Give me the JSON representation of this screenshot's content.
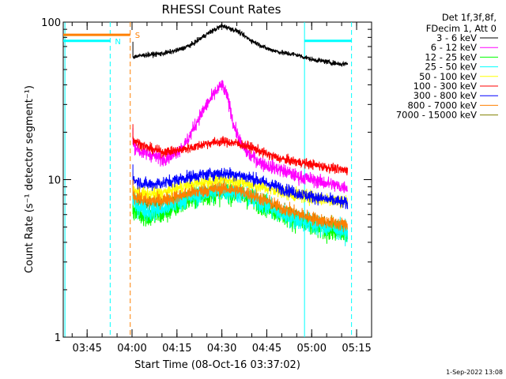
{
  "chart_data": {
    "type": "line",
    "title": "RHESSI Count Rates",
    "xlabel": "Start Time (08-Oct-16 03:37:02)",
    "ylabel": "Count Rate (s⁻¹ detector segment⁻¹)",
    "y_scale": "log",
    "ylim": [
      1,
      100
    ],
    "y_ticks": [
      {
        "value": 1,
        "label": "1"
      },
      {
        "value": 10,
        "label": "10"
      },
      {
        "value": 100,
        "label": "100"
      }
    ],
    "x_ticks": [
      {
        "value": 225,
        "label": "03:45"
      },
      {
        "value": 240,
        "label": "04:00"
      },
      {
        "value": 255,
        "label": "04:15"
      },
      {
        "value": 270,
        "label": "04:30"
      },
      {
        "value": 285,
        "label": "04:45"
      },
      {
        "value": 300,
        "label": "05:00"
      },
      {
        "value": 315,
        "label": "05:15"
      }
    ],
    "xlim_minutes_of_day": [
      217.03,
      320
    ],
    "legend_header": [
      "Det 1f,3f,8f,",
      "FDecim 1, Att 0"
    ],
    "legend_position": "top-right",
    "series": [
      {
        "name": "3 - 6 keV",
        "color": "#000000",
        "x": [
          240,
          245,
          250,
          255,
          260,
          265,
          270,
          275,
          280,
          285,
          290,
          295,
          300,
          305,
          310,
          312
        ],
        "values": [
          60,
          62,
          63,
          66,
          72,
          84,
          95,
          88,
          76,
          68,
          64,
          62,
          58,
          56,
          54,
          55
        ]
      },
      {
        "name": "6 - 12 keV",
        "color": "#ff00ff",
        "x": [
          240,
          243,
          246,
          250,
          254,
          258,
          262,
          265,
          268,
          270,
          272,
          274,
          277,
          280,
          284,
          290,
          295,
          300,
          305,
          310,
          312
        ],
        "values": [
          17,
          15,
          14.5,
          13.5,
          14.5,
          17,
          24,
          30,
          36,
          40,
          33,
          22,
          16,
          14,
          12.5,
          11.5,
          10.5,
          10,
          9.5,
          9,
          9
        ]
      },
      {
        "name": "12 - 25 keV",
        "color": "#00ff00",
        "x": [
          240,
          245,
          250,
          255,
          260,
          265,
          270,
          275,
          280,
          285,
          290,
          295,
          300,
          305,
          310,
          312
        ],
        "values": [
          6.5,
          5.8,
          6,
          6.8,
          7.5,
          8,
          8.3,
          8.2,
          7.5,
          6.8,
          6,
          5.5,
          5,
          4.8,
          4.6,
          4.5
        ]
      },
      {
        "name": "25 - 50 keV",
        "color": "#00ffff",
        "x": [
          240,
          245,
          250,
          255,
          260,
          265,
          270,
          275,
          280,
          285,
          290,
          295,
          300,
          305,
          310,
          312
        ],
        "values": [
          7.2,
          6.3,
          6.5,
          7.2,
          7.8,
          8.2,
          8.5,
          8.3,
          7.6,
          6.8,
          6,
          5.6,
          5.2,
          5,
          4.8,
          4.7
        ]
      },
      {
        "name": "50 - 100 keV",
        "color": "#ffff00",
        "x": [
          240,
          245,
          250,
          255,
          260,
          265,
          270,
          275,
          280,
          285,
          290,
          295,
          300,
          305,
          310,
          312
        ],
        "values": [
          8.5,
          8,
          8.2,
          8.8,
          9.3,
          9.7,
          10,
          9.8,
          9.3,
          8.8,
          8.3,
          8,
          7.7,
          7.5,
          7.3,
          7.2
        ]
      },
      {
        "name": "100 - 300 keV",
        "color": "#ff0000",
        "x": [
          240,
          245,
          250,
          255,
          260,
          265,
          270,
          275,
          280,
          285,
          290,
          295,
          300,
          305,
          310,
          312
        ],
        "values": [
          18,
          16,
          15,
          15.3,
          16,
          17,
          17.5,
          17,
          16,
          14.5,
          13.5,
          13,
          12.5,
          12,
          11.5,
          11.5
        ]
      },
      {
        "name": "300 - 800 keV",
        "color": "#0000ff",
        "x": [
          240,
          245,
          250,
          255,
          260,
          265,
          270,
          275,
          280,
          285,
          290,
          295,
          300,
          305,
          310,
          312
        ],
        "values": [
          10,
          9.3,
          9.5,
          10,
          10.5,
          10.8,
          11,
          10.8,
          10.2,
          9.5,
          8.8,
          8.2,
          7.8,
          7.5,
          7.2,
          7
        ]
      },
      {
        "name": "800 - 7000 keV",
        "color": "#ff8000",
        "x": [
          240,
          245,
          250,
          255,
          260,
          265,
          270,
          275,
          280,
          285,
          290,
          295,
          300,
          305,
          310,
          312
        ],
        "values": [
          8,
          7.3,
          7.4,
          7.8,
          8.3,
          8.6,
          8.8,
          8.6,
          8,
          7.3,
          6.6,
          6.1,
          5.7,
          5.4,
          5.2,
          5.1
        ]
      },
      {
        "name": "7000 - 15000 keV",
        "color": "#808000",
        "x": [
          240,
          245,
          250,
          255,
          260,
          265,
          270,
          275,
          280,
          285,
          290,
          295,
          300,
          305,
          310,
          312
        ],
        "values": [
          7.6,
          7,
          7.1,
          7.5,
          8,
          8.3,
          8.5,
          8.3,
          7.7,
          7,
          6.4,
          5.9,
          5.5,
          5.2,
          5,
          4.9
        ]
      }
    ],
    "attenuator_markers": [
      {
        "label": "S",
        "color": "#ff8000",
        "x_from": 217.03,
        "x_to": 239.4,
        "y": 83
      },
      {
        "label": "N",
        "color": "#00ffff",
        "x_from": 217.03,
        "x_to": 232.7,
        "y": 76
      },
      {
        "label": "",
        "color": "#00ffff",
        "x_from": 297.6,
        "x_to": 313.3,
        "y": 76
      }
    ],
    "interval_lines": [
      {
        "x": 217.6,
        "color": "#00ffff",
        "style": "solid"
      },
      {
        "x": 232.7,
        "color": "#00ffff",
        "style": "dashed"
      },
      {
        "x": 239.4,
        "color": "#ff8000",
        "style": "dashed"
      },
      {
        "x": 297.6,
        "color": "#00ffff",
        "style": "solid"
      },
      {
        "x": 313.3,
        "color": "#00ffff",
        "style": "dashed"
      }
    ],
    "data_start_x": 240.3,
    "grid": false,
    "footer_stamp": "1-Sep-2022 13:08"
  }
}
